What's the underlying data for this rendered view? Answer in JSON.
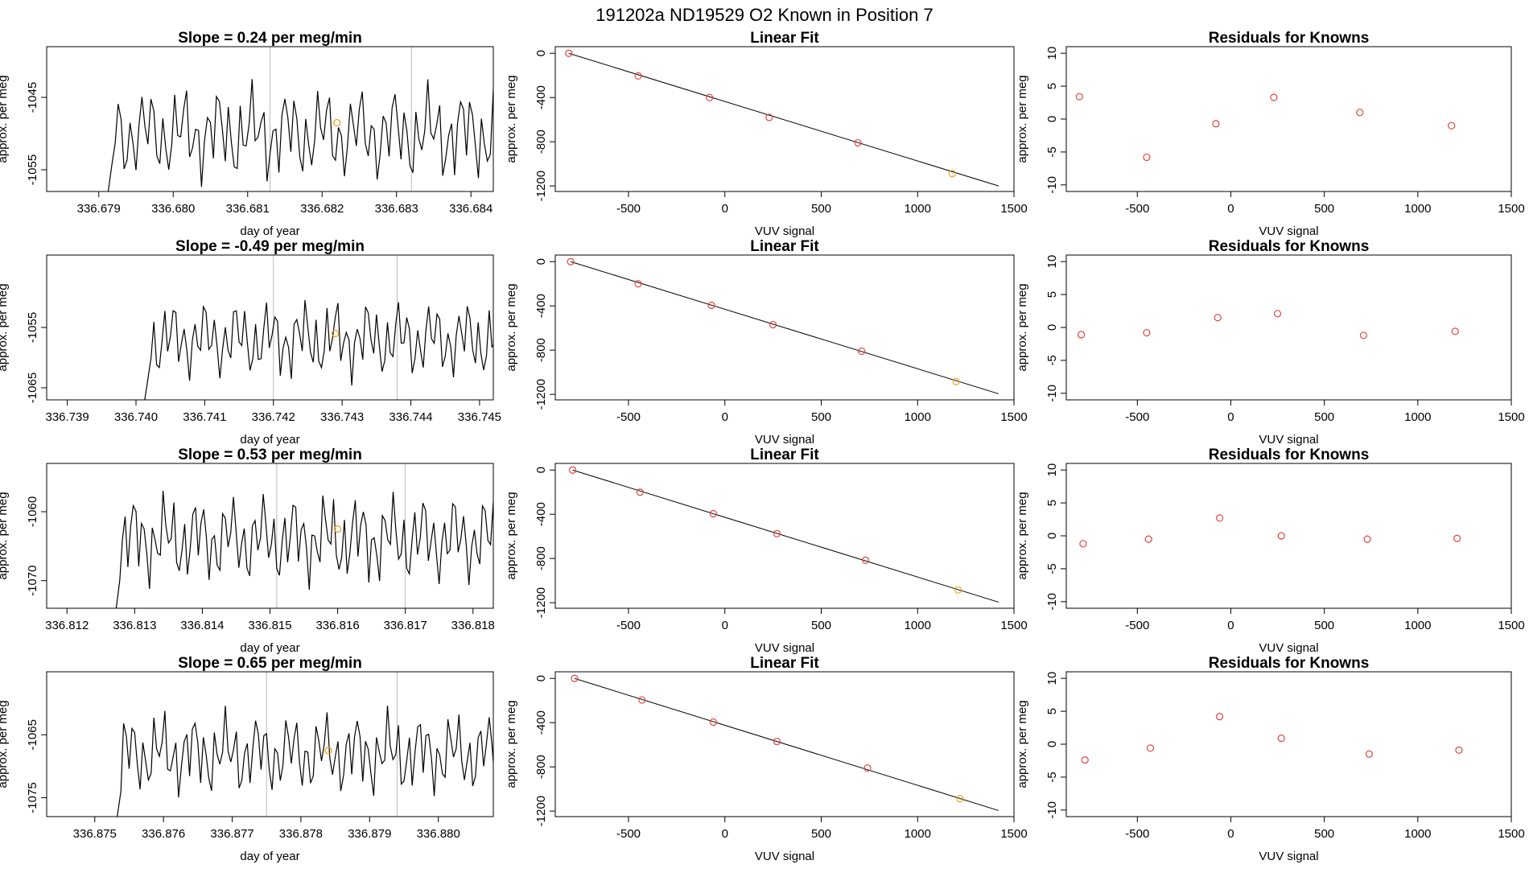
{
  "suptitle": "191202a     ND19529   O2 Known in Position  7",
  "colors": {
    "line": "#000000",
    "point": "#e0463c",
    "highlight": "#f0a020",
    "vline": "#bbbbbb",
    "frame": "#000000"
  },
  "chart_data": [
    {
      "type": "line",
      "title": "Slope =  0.24  per meg/min",
      "xlabel": "day of year",
      "ylabel": "approx. per meg",
      "xlim": [
        336.6783,
        336.6843
      ],
      "ylim": [
        -1058,
        -1038
      ],
      "xticks": [
        "336.679",
        "336.680",
        "336.681",
        "336.682",
        "336.683",
        "336.684"
      ],
      "yticks": [
        "-1045",
        "-1055"
      ],
      "vlines": [
        336.6813,
        336.6832
      ],
      "highlight": {
        "x": 336.6822,
        "y": -1048.5
      },
      "series": {
        "start": 336.6791,
        "step": 4e-05,
        "base": -1050,
        "amp": 4,
        "phase": 0.3
      }
    },
    {
      "type": "scatter",
      "title": "Linear Fit",
      "xlabel": "VUV signal",
      "ylabel": "approx. per meg",
      "xlim": [
        -880,
        1500
      ],
      "ylim": [
        -1250,
        60
      ],
      "xticks": [
        "-500",
        "0",
        "500",
        "1000",
        "1500"
      ],
      "yticks": [
        "0",
        "-400",
        "-800",
        "-1200"
      ],
      "x": [
        -810,
        -450,
        -80,
        230,
        690,
        1180
      ],
      "y": [
        0,
        -205,
        -400,
        -580,
        -810,
        -1088
      ],
      "fit": [
        [
          -810,
          0
        ],
        [
          1420,
          -1200
        ]
      ],
      "highlight_index": 5
    },
    {
      "type": "scatter",
      "title": "Residuals for Knowns",
      "xlabel": "VUV signal",
      "ylabel": "approx. per meg",
      "xlim": [
        -880,
        1500
      ],
      "ylim": [
        -11,
        11
      ],
      "xticks": [
        "-500",
        "0",
        "500",
        "1000",
        "1500"
      ],
      "yticks": [
        "10",
        "5",
        "0",
        "-5",
        "-10"
      ],
      "x": [
        -810,
        -450,
        -80,
        230,
        690,
        1180
      ],
      "y": [
        3.4,
        -5.8,
        -0.7,
        3.3,
        1.0,
        -1.0
      ]
    },
    {
      "type": "line",
      "title": "Slope =  -0.49  per meg/min",
      "xlabel": "day of year",
      "ylabel": "approx. per meg",
      "xlim": [
        336.7387,
        336.7452
      ],
      "ylim": [
        -1067,
        -1043
      ],
      "xticks": [
        "336.739",
        "336.740",
        "336.741",
        "336.742",
        "336.743",
        "336.744",
        "336.745"
      ],
      "yticks": [
        "-1055",
        "-1065"
      ],
      "vlines": [
        336.742,
        336.7438
      ],
      "highlight": {
        "x": 336.7429,
        "y": -1056
      },
      "series": {
        "start": 336.7401,
        "step": 4e-05,
        "base": -1057,
        "amp": 4,
        "phase": 1.1
      }
    },
    {
      "type": "scatter",
      "title": "Linear Fit",
      "xlabel": "VUV signal",
      "ylabel": "approx. per meg",
      "xlim": [
        -880,
        1500
      ],
      "ylim": [
        -1250,
        60
      ],
      "xticks": [
        "-500",
        "0",
        "500",
        "1000",
        "1500"
      ],
      "yticks": [
        "0",
        "-400",
        "-800",
        "-1200"
      ],
      "x": [
        -800,
        -450,
        -70,
        250,
        710,
        1200
      ],
      "y": [
        0,
        -200,
        -395,
        -570,
        -810,
        -1085
      ],
      "fit": [
        [
          -800,
          0
        ],
        [
          1420,
          -1195
        ]
      ],
      "highlight_index": 5
    },
    {
      "type": "scatter",
      "title": "Residuals for Knowns",
      "xlabel": "VUV signal",
      "ylabel": "approx. per meg",
      "xlim": [
        -880,
        1500
      ],
      "ylim": [
        -11,
        11
      ],
      "xticks": [
        "-500",
        "0",
        "500",
        "1000",
        "1500"
      ],
      "yticks": [
        "10",
        "5",
        "0",
        "-5",
        "-10"
      ],
      "x": [
        -800,
        -450,
        -70,
        250,
        710,
        1200
      ],
      "y": [
        -1.1,
        -0.8,
        1.5,
        2.1,
        -1.2,
        -0.6
      ]
    },
    {
      "type": "line",
      "title": "Slope =  0.53  per meg/min",
      "xlabel": "day of year",
      "ylabel": "approx. per meg",
      "xlim": [
        336.8117,
        336.8183
      ],
      "ylim": [
        -1074,
        -1053
      ],
      "xticks": [
        "336.812",
        "336.813",
        "336.814",
        "336.815",
        "336.816",
        "336.817",
        "336.818"
      ],
      "yticks": [
        "-1060",
        "-1070"
      ],
      "vlines": [
        336.8151,
        336.817
      ],
      "highlight": {
        "x": 336.816,
        "y": -1062.5
      },
      "series": {
        "start": 336.8127,
        "step": 4e-05,
        "base": -1064,
        "amp": 4,
        "phase": 2.0
      }
    },
    {
      "type": "scatter",
      "title": "Linear Fit",
      "xlabel": "VUV signal",
      "ylabel": "approx. per meg",
      "xlim": [
        -880,
        1500
      ],
      "ylim": [
        -1250,
        60
      ],
      "xticks": [
        "-500",
        "0",
        "500",
        "1000",
        "1500"
      ],
      "yticks": [
        "0",
        "-400",
        "-800",
        "-1200"
      ],
      "x": [
        -790,
        -440,
        -60,
        270,
        730,
        1210
      ],
      "y": [
        0,
        -200,
        -395,
        -575,
        -815,
        -1085
      ],
      "fit": [
        [
          -790,
          0
        ],
        [
          1420,
          -1195
        ]
      ],
      "highlight_index": 5
    },
    {
      "type": "scatter",
      "title": "Residuals for Knowns",
      "xlabel": "VUV signal",
      "ylabel": "approx. per meg",
      "xlim": [
        -880,
        1500
      ],
      "ylim": [
        -11,
        11
      ],
      "xticks": [
        "-500",
        "0",
        "500",
        "1000",
        "1500"
      ],
      "yticks": [
        "10",
        "5",
        "0",
        "-5",
        "-10"
      ],
      "x": [
        -790,
        -440,
        -60,
        270,
        730,
        1210
      ],
      "y": [
        -1.2,
        -0.5,
        2.7,
        0.0,
        -0.5,
        -0.4
      ]
    },
    {
      "type": "line",
      "title": "Slope =  0.65  per meg/min",
      "xlabel": "day of year",
      "ylabel": "approx. per meg",
      "xlim": [
        336.8743,
        336.8808
      ],
      "ylim": [
        -1078,
        -1055
      ],
      "xticks": [
        "336.875",
        "336.876",
        "336.877",
        "336.878",
        "336.879",
        "336.880"
      ],
      "yticks": [
        "-1065",
        "-1075"
      ],
      "vlines": [
        336.8775,
        336.8794
      ],
      "highlight": {
        "x": 336.8784,
        "y": -1067.5
      },
      "series": {
        "start": 336.8753,
        "step": 4e-05,
        "base": -1068,
        "amp": 4,
        "phase": 2.7
      }
    },
    {
      "type": "scatter",
      "title": "Linear Fit",
      "xlabel": "VUV signal",
      "ylabel": "approx. per meg",
      "xlim": [
        -880,
        1500
      ],
      "ylim": [
        -1250,
        60
      ],
      "xticks": [
        "-500",
        "0",
        "500",
        "1000",
        "1500"
      ],
      "yticks": [
        "0",
        "-400",
        "-800",
        "-1200"
      ],
      "x": [
        -780,
        -430,
        -60,
        270,
        740,
        1220
      ],
      "y": [
        0,
        -195,
        -395,
        -570,
        -810,
        -1088
      ],
      "fit": [
        [
          -780,
          0
        ],
        [
          1420,
          -1195
        ]
      ],
      "highlight_index": 5
    },
    {
      "type": "scatter",
      "title": "Residuals for Knowns",
      "xlabel": "VUV signal",
      "ylabel": "approx. per meg",
      "xlim": [
        -880,
        1500
      ],
      "ylim": [
        -11,
        11
      ],
      "xticks": [
        "-500",
        "0",
        "500",
        "1000",
        "1500"
      ],
      "yticks": [
        "10",
        "5",
        "0",
        "-5",
        "-10"
      ],
      "x": [
        -780,
        -430,
        -60,
        270,
        740,
        1220
      ],
      "y": [
        -2.4,
        -0.6,
        4.2,
        0.9,
        -1.5,
        -0.9
      ]
    }
  ]
}
